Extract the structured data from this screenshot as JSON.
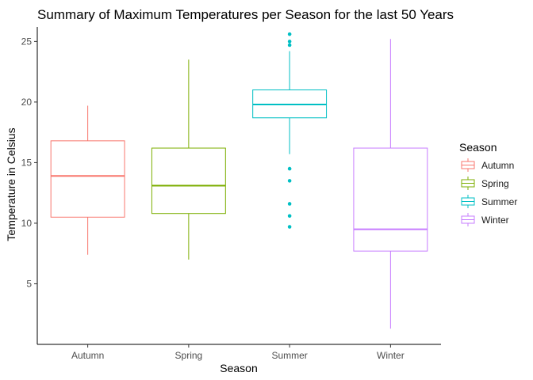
{
  "chart_data": {
    "type": "box",
    "title": "Summary of Maximum Temperatures per Season for the last 50 Years",
    "xlabel": "Season",
    "ylabel": "Temperature in Celsius",
    "ylim": [
      0,
      26.2
    ],
    "yticks": [
      5,
      10,
      15,
      20,
      25
    ],
    "grid": false,
    "legend": {
      "title": "Season",
      "position": "right",
      "entries": [
        "Autumn",
        "Spring",
        "Summer",
        "Winter"
      ]
    },
    "categories": [
      "Autumn",
      "Spring",
      "Summer",
      "Winter"
    ],
    "series": [
      {
        "name": "Autumn",
        "color": "#F8766D",
        "whisker_low": 7.4,
        "q1": 10.5,
        "median": 13.9,
        "q3": 16.8,
        "whisker_high": 19.7,
        "outliers": []
      },
      {
        "name": "Spring",
        "color": "#7CAE00",
        "whisker_low": 7.0,
        "q1": 10.8,
        "median": 13.1,
        "q3": 16.2,
        "whisker_high": 23.5,
        "outliers": []
      },
      {
        "name": "Summer",
        "color": "#00BFC4",
        "whisker_low": 15.7,
        "q1": 18.7,
        "median": 19.8,
        "q3": 21.0,
        "whisker_high": 24.2,
        "outliers": [
          25.6,
          25.0,
          24.7,
          14.5,
          13.5,
          11.6,
          10.6,
          9.7
        ]
      },
      {
        "name": "Winter",
        "color": "#C77CFF",
        "whisker_low": 1.3,
        "q1": 7.7,
        "median": 9.5,
        "q3": 16.2,
        "whisker_high": 25.2,
        "outliers": []
      }
    ]
  }
}
